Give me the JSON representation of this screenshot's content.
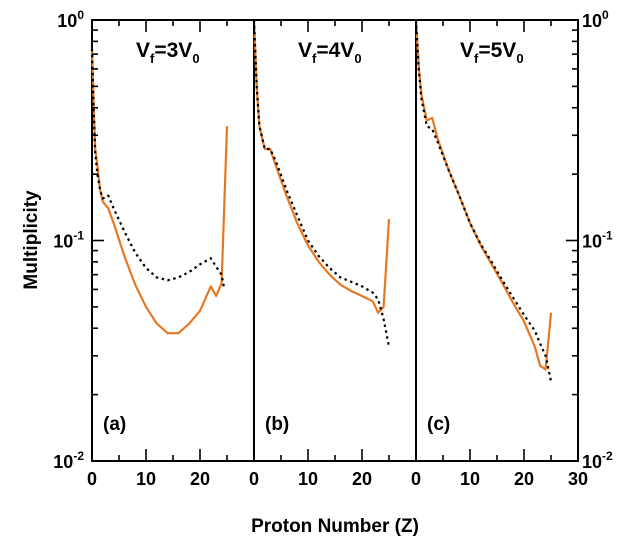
{
  "figure": {
    "ylabel": "Multiplicity",
    "xlabel": "Proton Number (Z)",
    "y_tick_labels": [
      {
        "base": "10",
        "exp": "0",
        "value": 1
      },
      {
        "base": "10",
        "exp": "-1",
        "value": 0.1
      },
      {
        "base": "10",
        "exp": "-2",
        "value": 0.01
      }
    ],
    "colors": {
      "solid": "#e87722",
      "dotted": "#000000",
      "axis": "#000000"
    }
  },
  "chart_data": [
    {
      "type": "line",
      "panel_label": "(a)",
      "title": {
        "main": "V",
        "sub": "f",
        "mid": "=3V",
        "sub2": "0"
      },
      "xlim": [
        0,
        30
      ],
      "ylim": [
        0.01,
        1
      ],
      "yscale": "log",
      "x_ticks": [
        0,
        10,
        20
      ],
      "series": [
        {
          "style": "solid",
          "x": [
            0,
            0.3,
            0.6,
            1,
            1.5,
            2,
            3,
            4,
            6,
            8,
            10,
            12,
            14,
            16,
            18,
            20,
            22,
            23,
            24,
            25
          ],
          "y": [
            0.74,
            0.42,
            0.26,
            0.22,
            0.17,
            0.15,
            0.14,
            0.12,
            0.085,
            0.063,
            0.05,
            0.042,
            0.038,
            0.038,
            0.042,
            0.048,
            0.062,
            0.056,
            0.064,
            0.33
          ]
        },
        {
          "style": "dotted",
          "x": [
            0,
            0.3,
            0.6,
            1,
            1.5,
            2,
            3,
            4,
            6,
            8,
            10,
            12,
            14,
            16,
            18,
            20,
            22,
            23,
            24,
            24.5
          ],
          "y": [
            0.74,
            0.4,
            0.25,
            0.2,
            0.17,
            0.155,
            0.16,
            0.14,
            0.11,
            0.088,
            0.075,
            0.068,
            0.066,
            0.068,
            0.072,
            0.078,
            0.083,
            0.076,
            0.07,
            0.06
          ]
        }
      ]
    },
    {
      "type": "line",
      "panel_label": "(b)",
      "title": {
        "main": "V",
        "sub": "f",
        "mid": "=4V",
        "sub2": "0"
      },
      "xlim": [
        0,
        30
      ],
      "ylim": [
        0.01,
        1
      ],
      "yscale": "log",
      "x_ticks": [
        0,
        10,
        20
      ],
      "series": [
        {
          "style": "solid",
          "x": [
            0,
            0.5,
            1,
            2,
            3,
            4,
            6,
            8,
            10,
            12,
            14,
            16,
            18,
            20,
            22,
            23,
            24,
            25
          ],
          "y": [
            1.0,
            0.5,
            0.33,
            0.26,
            0.26,
            0.22,
            0.16,
            0.12,
            0.095,
            0.08,
            0.07,
            0.063,
            0.059,
            0.056,
            0.053,
            0.047,
            0.05,
            0.125
          ]
        },
        {
          "style": "dotted",
          "x": [
            0,
            0.5,
            1,
            2,
            3,
            4,
            6,
            8,
            10,
            12,
            14,
            16,
            18,
            20,
            22,
            23,
            24,
            25
          ],
          "y": [
            1.0,
            0.5,
            0.33,
            0.26,
            0.26,
            0.23,
            0.17,
            0.13,
            0.1,
            0.085,
            0.075,
            0.068,
            0.065,
            0.062,
            0.058,
            0.054,
            0.044,
            0.033
          ]
        }
      ]
    },
    {
      "type": "line",
      "panel_label": "(c)",
      "title": {
        "main": "V",
        "sub": "f",
        "mid": "=5V",
        "sub2": "0"
      },
      "xlim": [
        0,
        30
      ],
      "ylim": [
        0.01,
        1
      ],
      "yscale": "log",
      "x_ticks": [
        0,
        10,
        20,
        30
      ],
      "series": [
        {
          "style": "solid",
          "x": [
            0,
            0.5,
            1,
            2,
            3,
            4,
            6,
            8,
            10,
            12,
            14,
            16,
            18,
            20,
            22,
            23,
            24,
            25
          ],
          "y": [
            1.0,
            0.62,
            0.46,
            0.35,
            0.36,
            0.29,
            0.21,
            0.16,
            0.12,
            0.095,
            0.078,
            0.064,
            0.052,
            0.043,
            0.033,
            0.027,
            0.026,
            0.047
          ]
        },
        {
          "style": "dotted",
          "x": [
            0,
            0.5,
            1,
            2,
            3,
            4,
            6,
            8,
            10,
            12,
            14,
            16,
            18,
            20,
            22,
            23,
            24,
            25
          ],
          "y": [
            1.0,
            0.6,
            0.44,
            0.33,
            0.32,
            0.28,
            0.21,
            0.16,
            0.12,
            0.096,
            0.08,
            0.066,
            0.055,
            0.046,
            0.039,
            0.034,
            0.03,
            0.023
          ]
        }
      ]
    }
  ]
}
